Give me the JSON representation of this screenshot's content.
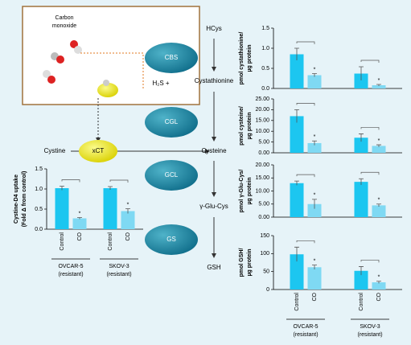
{
  "diagram": {
    "box_label": [
      "Carbon",
      "monoxide"
    ],
    "enzymes": [
      "CBS",
      "CGL",
      "GCL",
      "GS"
    ],
    "transporter": "xCT",
    "metabolites": [
      "HCys",
      "Cystathionine",
      "Cysteine",
      "γ-Glu-Cys",
      "GSH"
    ],
    "h2s": "H₂S +",
    "cystine": "Cystine"
  },
  "chart_data": [
    {
      "type": "bar",
      "ylabel": [
        "Cystine-D4 uptake",
        "(Fold Δ from control)"
      ],
      "categories": [
        "OVCAR-5",
        "SKOV-3"
      ],
      "category_note": "(resistant)",
      "series": [
        {
          "name": "Control",
          "color": "#1cc6f0",
          "values": [
            1.02,
            1.02
          ],
          "errors": [
            0.05,
            0.04
          ]
        },
        {
          "name": "CO",
          "color": "#7fd9f3",
          "values": [
            0.27,
            0.45
          ],
          "errors": [
            0.02,
            0.06
          ]
        }
      ],
      "ylim": [
        0,
        1.5
      ],
      "yticks": [
        {
          "value": 0,
          "label": "0.0"
        },
        {
          "value": 0.5,
          "label": "0.5"
        },
        {
          "value": 1,
          "label": "1.0"
        },
        {
          "value": 1.5,
          "label": "1.5"
        }
      ],
      "significance_marker": "*",
      "significant": [
        false,
        true
      ]
    },
    {
      "type": "bar",
      "ylabel": [
        "pmol cystathionine/",
        "µg protein"
      ],
      "series": [
        {
          "color": "#1cc6f0",
          "values": [
            0.85,
            0.37
          ],
          "errors": [
            0.15,
            0.17
          ]
        },
        {
          "color": "#7fd9f3",
          "values": [
            0.33,
            0.08
          ],
          "errors": [
            0.04,
            0.02
          ]
        }
      ],
      "ylim": [
        0,
        1.5
      ],
      "yticks": [
        {
          "value": 0,
          "label": "0.0"
        },
        {
          "value": 0.5,
          "label": "0.5"
        },
        {
          "value": 1,
          "label": "1.0"
        },
        {
          "value": 1.5,
          "label": "1.5"
        }
      ],
      "significance_marker": "*",
      "significant": [
        false,
        true
      ]
    },
    {
      "type": "bar",
      "ylabel": [
        "pmol cysteine/",
        "µg protein"
      ],
      "series": [
        {
          "color": "#1cc6f0",
          "values": [
            17,
            7
          ],
          "errors": [
            3,
            1.8
          ]
        },
        {
          "color": "#7fd9f3",
          "values": [
            4.5,
            3.2
          ],
          "errors": [
            1,
            0.5
          ]
        }
      ],
      "ylim": [
        0,
        25
      ],
      "yticks": [
        {
          "value": 0,
          "label": "0.00"
        },
        {
          "value": 5,
          "label": "5.00"
        },
        {
          "value": 10,
          "label": "10.00"
        },
        {
          "value": 15,
          "label": "15.00"
        },
        {
          "value": 20,
          "label": "20.00"
        },
        {
          "value": 25,
          "label": "25.00"
        }
      ],
      "significance_marker": "*",
      "significant": [
        false,
        true
      ]
    },
    {
      "type": "bar",
      "ylabel": [
        "pmol γ-Glu-Cys/",
        "µg protein"
      ],
      "series": [
        {
          "color": "#1cc6f0",
          "values": [
            13,
            13.5
          ],
          "errors": [
            0.8,
            1.2
          ]
        },
        {
          "color": "#7fd9f3",
          "values": [
            5,
            4.5
          ],
          "errors": [
            1.8,
            0.5
          ]
        }
      ],
      "ylim": [
        0,
        20
      ],
      "yticks": [
        {
          "value": 0,
          "label": "0.00"
        },
        {
          "value": 5,
          "label": "5.00"
        },
        {
          "value": 10,
          "label": "10.00"
        },
        {
          "value": 15,
          "label": "15.00"
        },
        {
          "value": 20,
          "label": "20.00"
        }
      ],
      "significance_marker": "*",
      "significant": [
        false,
        true
      ]
    },
    {
      "type": "bar",
      "ylabel": [
        "pmol GSH/",
        "µg protein"
      ],
      "categories": [
        "OVCAR-5",
        "SKOV-3"
      ],
      "category_note": "(resistant)",
      "series": [
        {
          "name": "Control",
          "color": "#1cc6f0",
          "values": [
            98,
            52
          ],
          "errors": [
            20,
            12
          ]
        },
        {
          "name": "CO",
          "color": "#7fd9f3",
          "values": [
            62,
            20
          ],
          "errors": [
            6,
            3
          ]
        }
      ],
      "ylim": [
        0,
        150
      ],
      "yticks": [
        0,
        50,
        100,
        150
      ],
      "significance_marker": "*",
      "significant": [
        false,
        true
      ]
    }
  ]
}
